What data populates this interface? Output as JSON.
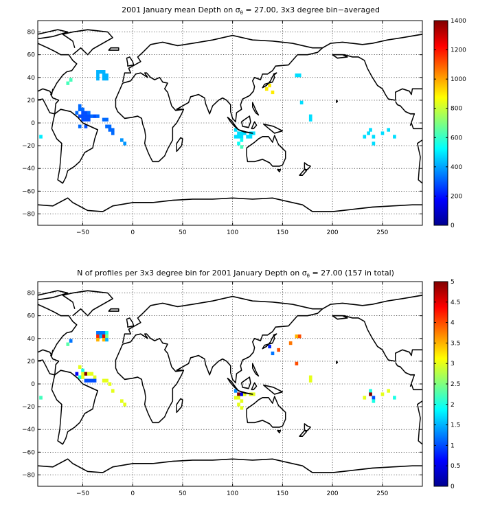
{
  "panels": [
    {
      "title_pre": "2001 January mean Depth on σ",
      "title_sub": "θ",
      "title_post": " = 27.00, 3x3 degree bin−averaged",
      "xlim": [
        -95,
        290
      ],
      "ylim": [
        -90,
        90
      ],
      "xticks": [
        -50,
        0,
        50,
        100,
        150,
        200,
        250
      ],
      "yticks": [
        80,
        60,
        40,
        20,
        0,
        -20,
        -40,
        -60,
        -80
      ],
      "colorbar": {
        "ticks": [
          1400,
          1200,
          1000,
          800,
          600,
          400,
          200,
          0
        ],
        "min": 0,
        "max": 1400
      },
      "cells": [
        [
          -35,
          45,
          420
        ],
        [
          -32,
          45,
          420
        ],
        [
          -29,
          45,
          420
        ],
        [
          -35,
          42,
          420
        ],
        [
          -29,
          42,
          420
        ],
        [
          -26,
          42,
          420
        ],
        [
          -35,
          39,
          420
        ],
        [
          -29,
          39,
          420
        ],
        [
          -26,
          39,
          420
        ],
        [
          -62,
          38,
          620
        ],
        [
          -65,
          35,
          620
        ],
        [
          -53,
          15,
          320
        ],
        [
          -53,
          12,
          320
        ],
        [
          -50,
          12,
          320
        ],
        [
          -56,
          9,
          320
        ],
        [
          -50,
          9,
          280
        ],
        [
          -47,
          9,
          280
        ],
        [
          -44,
          9,
          320
        ],
        [
          -53,
          6,
          280
        ],
        [
          -50,
          6,
          280
        ],
        [
          -47,
          6,
          280
        ],
        [
          -44,
          6,
          280
        ],
        [
          -41,
          6,
          320
        ],
        [
          -38,
          6,
          280
        ],
        [
          -35,
          6,
          320
        ],
        [
          -50,
          3,
          280
        ],
        [
          -47,
          3,
          280
        ],
        [
          -44,
          3,
          280
        ],
        [
          -29,
          3,
          320
        ],
        [
          -26,
          3,
          320
        ],
        [
          -53,
          -3,
          320
        ],
        [
          -47,
          -3,
          280
        ],
        [
          -26,
          -3,
          320
        ],
        [
          -23,
          -3,
          320
        ],
        [
          -23,
          -6,
          320
        ],
        [
          -20,
          -6,
          320
        ],
        [
          -20,
          -9,
          320
        ],
        [
          -11,
          -15,
          380
        ],
        [
          -8,
          -18,
          380
        ],
        [
          -92,
          -12,
          500
        ],
        [
          103,
          -6,
          480
        ],
        [
          106,
          -9,
          480
        ],
        [
          109,
          -9,
          480
        ],
        [
          112,
          -9,
          480
        ],
        [
          118,
          -9,
          480
        ],
        [
          121,
          -9,
          480
        ],
        [
          103,
          -12,
          480
        ],
        [
          106,
          -12,
          480
        ],
        [
          109,
          -12,
          480
        ],
        [
          115,
          -12,
          480
        ],
        [
          118,
          -12,
          480
        ],
        [
          109,
          -15,
          540
        ],
        [
          106,
          -18,
          540
        ],
        [
          109,
          -21,
          620
        ],
        [
          137,
          33,
          900
        ],
        [
          134,
          30,
          900
        ],
        [
          140,
          27,
          900
        ],
        [
          164,
          42,
          480
        ],
        [
          167,
          42,
          480
        ],
        [
          169,
          18,
          480
        ],
        [
          178,
          6,
          480
        ],
        [
          178,
          3,
          480
        ],
        [
          232,
          -12,
          480
        ],
        [
          236,
          -9,
          480
        ],
        [
          238,
          -6,
          480
        ],
        [
          241,
          -12,
          480
        ],
        [
          241,
          -18,
          480
        ],
        [
          250,
          -9,
          480
        ],
        [
          256,
          -6,
          480
        ],
        [
          262,
          -12,
          480
        ]
      ]
    },
    {
      "title_pre": "N of profiles per 3x3 degree bin for 2001 January Depth on σ",
      "title_sub": "θ",
      "title_post": " = 27.00 (157 in total)",
      "xlim": [
        -95,
        290
      ],
      "ylim": [
        -90,
        90
      ],
      "xticks": [
        -50,
        0,
        50,
        100,
        150,
        200,
        250
      ],
      "yticks": [
        80,
        60,
        40,
        20,
        0,
        -20,
        -40,
        -60,
        -80
      ],
      "colorbar": {
        "ticks": [
          5,
          4.5,
          4,
          3.5,
          3,
          2.5,
          2,
          1.5,
          1,
          0.5,
          0
        ],
        "min": 0,
        "max": 5
      },
      "cells": [
        [
          -35,
          45,
          1.2
        ],
        [
          -32,
          45,
          1.2
        ],
        [
          -29,
          45,
          1.2
        ],
        [
          -26,
          45,
          2
        ],
        [
          -35,
          42,
          4.2
        ],
        [
          -32,
          42,
          1.5
        ],
        [
          -29,
          42,
          4.5
        ],
        [
          -26,
          42,
          2.5
        ],
        [
          -35,
          39,
          3.5
        ],
        [
          -29,
          39,
          3.5
        ],
        [
          -26,
          39,
          1.5
        ],
        [
          -62,
          38,
          1.2
        ],
        [
          -65,
          35,
          2.3
        ],
        [
          -53,
          15,
          3
        ],
        [
          -50,
          12,
          2
        ],
        [
          -56,
          9,
          0.6
        ],
        [
          -50,
          9,
          3
        ],
        [
          -47,
          9,
          5
        ],
        [
          -44,
          9,
          3
        ],
        [
          -41,
          9,
          3
        ],
        [
          -38,
          6,
          3
        ],
        [
          -53,
          6,
          2
        ],
        [
          -50,
          6,
          3
        ],
        [
          -47,
          3,
          1
        ],
        [
          -44,
          3,
          1
        ],
        [
          -41,
          3,
          1
        ],
        [
          -38,
          3,
          1
        ],
        [
          -29,
          3,
          3
        ],
        [
          -26,
          3,
          3
        ],
        [
          -23,
          0,
          3
        ],
        [
          -20,
          -6,
          3
        ],
        [
          -11,
          -15,
          3
        ],
        [
          -8,
          -18,
          3
        ],
        [
          -92,
          -12,
          2.2
        ],
        [
          103,
          -6,
          1.3
        ],
        [
          106,
          -9,
          5
        ],
        [
          109,
          -9,
          0.5
        ],
        [
          112,
          -9,
          3
        ],
        [
          118,
          -9,
          3
        ],
        [
          121,
          -9,
          3
        ],
        [
          103,
          -12,
          3
        ],
        [
          106,
          -12,
          3
        ],
        [
          109,
          -15,
          3
        ],
        [
          106,
          -18,
          3
        ],
        [
          109,
          -21,
          3
        ],
        [
          137,
          33,
          0.8
        ],
        [
          140,
          27,
          1.2
        ],
        [
          146,
          30,
          4
        ],
        [
          158,
          36,
          3.8
        ],
        [
          164,
          42,
          3.5
        ],
        [
          167,
          42,
          4
        ],
        [
          164,
          18,
          4
        ],
        [
          178,
          6,
          3
        ],
        [
          178,
          3,
          3
        ],
        [
          232,
          -12,
          3
        ],
        [
          238,
          -6,
          2
        ],
        [
          238,
          -9,
          5
        ],
        [
          241,
          -12,
          1
        ],
        [
          241,
          -15,
          2
        ],
        [
          250,
          -9,
          3
        ],
        [
          256,
          -6,
          3
        ],
        [
          262,
          -12,
          2
        ]
      ]
    }
  ]
}
